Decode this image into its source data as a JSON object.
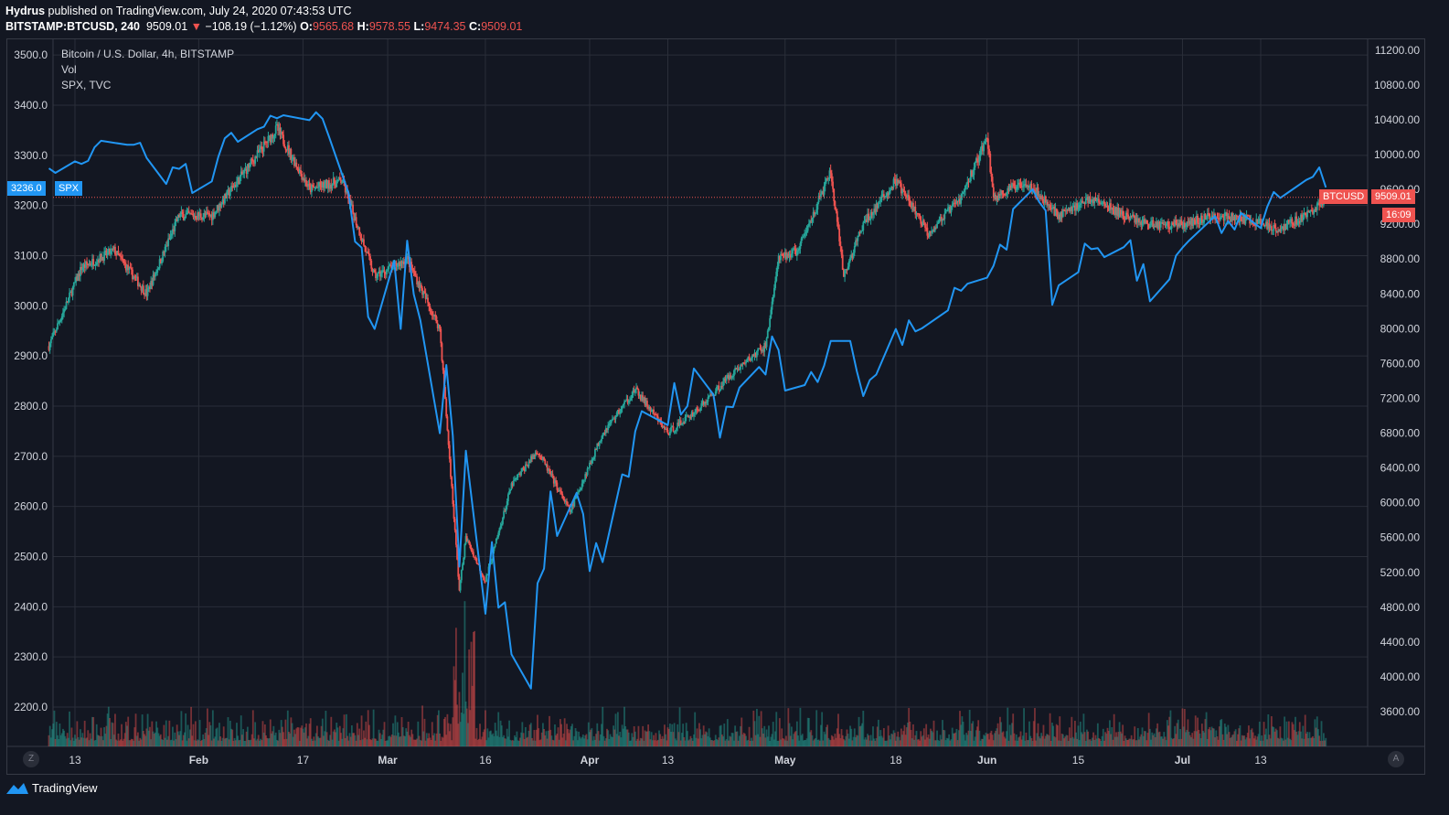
{
  "header": {
    "publisher": "Hydrus",
    "published_text": " published on TradingView.com, July 24, 2020 07:43:53 UTC",
    "symbol": "BITSTAMP:BTCUSD, 240",
    "last": "9509.01",
    "change_arrow": "▼",
    "change": "−108.19 (−1.12%)",
    "o_label": "O:",
    "o_value": "9565.68",
    "h_label": "H:",
    "h_value": "9578.55",
    "l_label": "L:",
    "l_value": "9474.35",
    "c_label": "C:",
    "c_value": "9509.01"
  },
  "legend": {
    "main": "Bitcoin / U.S. Dollar, 4h, BITSTAMP",
    "vol": "Vol",
    "compare": "SPX, TVC"
  },
  "tags": {
    "spx_value": "3236.0",
    "spx_name": "SPX",
    "btc_name": "BTCUSD",
    "btc_value": "9509.01",
    "countdown": "16:09"
  },
  "corner_left": "Z",
  "corner_right": "A",
  "brand": "TradingView",
  "colors": {
    "background": "#131722",
    "grid": "#2a2e39",
    "up": "#26a69a",
    "down": "#ef5350",
    "spx_line": "#2196f3",
    "spx_tag": "#2196f3",
    "btc_tag": "#ef5350"
  },
  "chart_data": {
    "type": "line",
    "title": "Bitcoin / U.S. Dollar, 4h, BITSTAMP",
    "left_axis": {
      "label": "SPX",
      "ticks": [
        "3500.0",
        "3400.0",
        "3300.0",
        "3200.0",
        "3100.0",
        "3000.0",
        "2900.0",
        "2800.0",
        "2700.0",
        "2600.0",
        "2500.0",
        "2400.0",
        "2300.0",
        "2200.0"
      ],
      "tick_values": [
        3500,
        3400,
        3300,
        3200,
        3100,
        3000,
        2900,
        2800,
        2700,
        2600,
        2500,
        2400,
        2300,
        2200
      ]
    },
    "right_axis": {
      "label": "BTCUSD",
      "ticks": [
        "11200.00",
        "10800.00",
        "10400.00",
        "10000.00",
        "9600.00",
        "9200.00",
        "8800.00",
        "8400.00",
        "8000.00",
        "7600.00",
        "7200.00",
        "6800.00",
        "6400.00",
        "6000.00",
        "5600.00",
        "5200.00",
        "4800.00",
        "4400.00",
        "4000.00",
        "3600.00"
      ],
      "tick_values": [
        11200,
        10800,
        10400,
        10000,
        9600,
        9200,
        8800,
        8400,
        8000,
        7600,
        7200,
        6800,
        6400,
        6000,
        5600,
        5200,
        4800,
        4400,
        4000,
        3600
      ]
    },
    "x_axis": {
      "ticks": [
        "13",
        "Feb",
        "17",
        "Mar",
        "16",
        "Apr",
        "13",
        "May",
        "18",
        "Jun",
        "15",
        "Jul",
        "13"
      ],
      "bold": [
        false,
        true,
        false,
        true,
        false,
        true,
        false,
        true,
        false,
        true,
        false,
        true,
        false
      ],
      "dates": [
        "2020-01-13",
        "2020-02-01",
        "2020-02-17",
        "2020-03-01",
        "2020-03-16",
        "2020-04-01",
        "2020-04-13",
        "2020-05-01",
        "2020-05-18",
        "2020-06-01",
        "2020-06-15",
        "2020-07-01",
        "2020-07-13"
      ]
    },
    "grid": true,
    "series": [
      {
        "name": "SPX",
        "axis": "left",
        "x": [
          "2020-01-09",
          "2020-01-10",
          "2020-01-13",
          "2020-01-14",
          "2020-01-15",
          "2020-01-16",
          "2020-01-17",
          "2020-01-21",
          "2020-01-22",
          "2020-01-23",
          "2020-01-24",
          "2020-01-27",
          "2020-01-28",
          "2020-01-29",
          "2020-01-30",
          "2020-01-31",
          "2020-02-03",
          "2020-02-04",
          "2020-02-05",
          "2020-02-06",
          "2020-02-07",
          "2020-02-10",
          "2020-02-11",
          "2020-02-12",
          "2020-02-13",
          "2020-02-14",
          "2020-02-18",
          "2020-02-19",
          "2020-02-20",
          "2020-02-21",
          "2020-02-24",
          "2020-02-25",
          "2020-02-26",
          "2020-02-27",
          "2020-02-28",
          "2020-03-02",
          "2020-03-03",
          "2020-03-04",
          "2020-03-05",
          "2020-03-06",
          "2020-03-09",
          "2020-03-10",
          "2020-03-11",
          "2020-03-12",
          "2020-03-13",
          "2020-03-16",
          "2020-03-17",
          "2020-03-18",
          "2020-03-19",
          "2020-03-20",
          "2020-03-23",
          "2020-03-24",
          "2020-03-25",
          "2020-03-26",
          "2020-03-27",
          "2020-03-30",
          "2020-03-31",
          "2020-04-01",
          "2020-04-02",
          "2020-04-03",
          "2020-04-06",
          "2020-04-07",
          "2020-04-08",
          "2020-04-09",
          "2020-04-13",
          "2020-04-14",
          "2020-04-15",
          "2020-04-16",
          "2020-04-17",
          "2020-04-20",
          "2020-04-21",
          "2020-04-22",
          "2020-04-23",
          "2020-04-24",
          "2020-04-27",
          "2020-04-28",
          "2020-04-29",
          "2020-04-30",
          "2020-05-01",
          "2020-05-04",
          "2020-05-05",
          "2020-05-06",
          "2020-05-07",
          "2020-05-08",
          "2020-05-11",
          "2020-05-12",
          "2020-05-13",
          "2020-05-14",
          "2020-05-15",
          "2020-05-18",
          "2020-05-19",
          "2020-05-20",
          "2020-05-21",
          "2020-05-22",
          "2020-05-26",
          "2020-05-27",
          "2020-05-28",
          "2020-05-29",
          "2020-06-01",
          "2020-06-02",
          "2020-06-03",
          "2020-06-04",
          "2020-06-05",
          "2020-06-08",
          "2020-06-09",
          "2020-06-10",
          "2020-06-11",
          "2020-06-12",
          "2020-06-15",
          "2020-06-16",
          "2020-06-17",
          "2020-06-18",
          "2020-06-19",
          "2020-06-22",
          "2020-06-23",
          "2020-06-24",
          "2020-06-25",
          "2020-06-26",
          "2020-06-29",
          "2020-06-30",
          "2020-07-01",
          "2020-07-02",
          "2020-07-06",
          "2020-07-07",
          "2020-07-08",
          "2020-07-09",
          "2020-07-10",
          "2020-07-13",
          "2020-07-14",
          "2020-07-15",
          "2020-07-16",
          "2020-07-17",
          "2020-07-20",
          "2020-07-21",
          "2020-07-22",
          "2020-07-23"
        ],
        "values": [
          3274,
          3265,
          3288,
          3283,
          3289,
          3316,
          3329,
          3321,
          3321,
          3325,
          3295,
          3243,
          3276,
          3273,
          3283,
          3225,
          3248,
          3297,
          3334,
          3345,
          3327,
          3352,
          3357,
          3379,
          3374,
          3380,
          3370,
          3386,
          3373,
          3337,
          3225,
          3128,
          3116,
          2978,
          2954,
          3090,
          2954,
          3130,
          3023,
          2972,
          2746,
          2882,
          2741,
          2480,
          2711,
          2386,
          2529,
          2398,
          2409,
          2305,
          2237,
          2447,
          2476,
          2630,
          2541,
          2627,
          2585,
          2471,
          2527,
          2489,
          2664,
          2659,
          2750,
          2790,
          2762,
          2846,
          2783,
          2800,
          2875,
          2823,
          2737,
          2799,
          2798,
          2837,
          2878,
          2863,
          2939,
          2912,
          2831,
          2842,
          2868,
          2848,
          2881,
          2930,
          2930,
          2870,
          2820,
          2852,
          2863,
          2954,
          2922,
          2971,
          2949,
          2955,
          2991,
          3036,
          3030,
          3044,
          3056,
          3080,
          3122,
          3112,
          3193,
          3232,
          3207,
          3190,
          3002,
          3041,
          3067,
          3124,
          3113,
          3115,
          3097,
          3117,
          3131,
          3050,
          3083,
          3009,
          3053,
          3100,
          3116,
          3130,
          3179,
          3145,
          3169,
          3152,
          3185,
          3155,
          3197,
          3227,
          3215,
          3224,
          3251,
          3257,
          3276,
          3236
        ]
      },
      {
        "name": "BTCUSD",
        "axis": "right",
        "type": "candlestick",
        "x": [
          "2020-01-09",
          "2020-01-14",
          "2020-01-19",
          "2020-01-24",
          "2020-01-29",
          "2020-02-03",
          "2020-02-08",
          "2020-02-13",
          "2020-02-18",
          "2020-02-23",
          "2020-02-28",
          "2020-03-04",
          "2020-03-09",
          "2020-03-12",
          "2020-03-13",
          "2020-03-16",
          "2020-03-20",
          "2020-03-24",
          "2020-03-29",
          "2020-04-03",
          "2020-04-08",
          "2020-04-13",
          "2020-04-18",
          "2020-04-23",
          "2020-04-28",
          "2020-04-30",
          "2020-05-03",
          "2020-05-08",
          "2020-05-10",
          "2020-05-13",
          "2020-05-18",
          "2020-05-23",
          "2020-05-28",
          "2020-06-01",
          "2020-06-02",
          "2020-06-07",
          "2020-06-12",
          "2020-06-17",
          "2020-06-22",
          "2020-06-26",
          "2020-07-01",
          "2020-07-06",
          "2020-07-11",
          "2020-07-16",
          "2020-07-21",
          "2020-07-23"
        ],
        "values": [
          7800,
          8700,
          8900,
          8400,
          9300,
          9300,
          9800,
          10300,
          9600,
          9700,
          8600,
          8800,
          8000,
          5000,
          5600,
          5100,
          6200,
          6600,
          5900,
          6800,
          7300,
          6800,
          7100,
          7500,
          7800,
          8800,
          8900,
          9800,
          8600,
          9200,
          9700,
          9100,
          9500,
          10200,
          9500,
          9700,
          9300,
          9500,
          9300,
          9200,
          9200,
          9300,
          9250,
          9150,
          9350,
          9509.01
        ]
      },
      {
        "name": "Vol",
        "type": "histogram"
      }
    ]
  }
}
